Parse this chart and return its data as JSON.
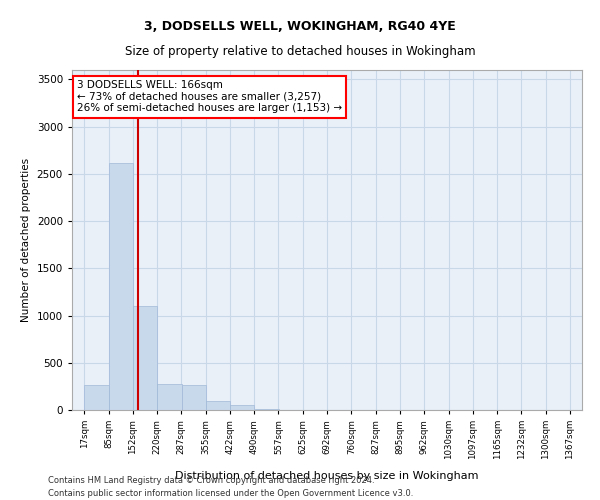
{
  "title_line1": "3, DODSELLS WELL, WOKINGHAM, RG40 4YE",
  "title_line2": "Size of property relative to detached houses in Wokingham",
  "xlabel": "Distribution of detached houses by size in Wokingham",
  "ylabel": "Number of detached properties",
  "bar_color": "#c9d9ec",
  "bar_edge_color": "#a0b8d8",
  "grid_color": "#c8d8e8",
  "background_color": "#eaf0f8",
  "annotation_box_text": "3 DODSELLS WELL: 166sqm\n← 73% of detached houses are smaller (3,257)\n26% of semi-detached houses are larger (1,153) →",
  "vline_x": 166,
  "vline_color": "#cc0000",
  "footnote1": "Contains HM Land Registry data © Crown copyright and database right 2024.",
  "footnote2": "Contains public sector information licensed under the Open Government Licence v3.0.",
  "bin_edges": [
    17,
    85,
    152,
    220,
    287,
    355,
    422,
    490,
    557,
    625,
    692,
    760,
    827,
    895,
    962,
    1030,
    1097,
    1165,
    1232,
    1300,
    1367
  ],
  "bin_labels": [
    "17sqm",
    "85sqm",
    "152sqm",
    "220sqm",
    "287sqm",
    "355sqm",
    "422sqm",
    "490sqm",
    "557sqm",
    "625sqm",
    "692sqm",
    "760sqm",
    "827sqm",
    "895sqm",
    "962sqm",
    "1030sqm",
    "1097sqm",
    "1165sqm",
    "1232sqm",
    "1300sqm",
    "1367sqm"
  ],
  "bar_heights": [
    270,
    2620,
    1100,
    280,
    270,
    100,
    50,
    10,
    0,
    0,
    0,
    0,
    0,
    0,
    0,
    0,
    0,
    0,
    0,
    0
  ],
  "ylim": [
    0,
    3600
  ],
  "yticks": [
    0,
    500,
    1000,
    1500,
    2000,
    2500,
    3000,
    3500
  ]
}
